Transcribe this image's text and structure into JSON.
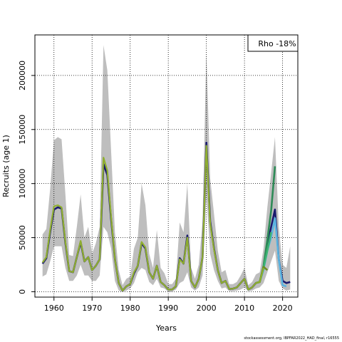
{
  "footer_text": "stockassessment.org, IBPFAR2022_HAD_final, r16555",
  "chart_data": {
    "type": "line",
    "xlabel": "Years",
    "ylabel": "Recruits (age 1)",
    "xlim": [
      1955,
      2024
    ],
    "ylim": [
      -5000,
      237500
    ],
    "x_ticks": [
      1960,
      1970,
      1980,
      1990,
      2000,
      2010,
      2020
    ],
    "y_ticks": [
      0,
      50000,
      100000,
      150000,
      200000
    ],
    "y_tick_labels": [
      "0",
      "50000",
      "100000",
      "150000",
      "200000"
    ],
    "grid": "dotted",
    "annotation": "Rho -18%",
    "annotation_position": "top-right",
    "confidence_band": {
      "color": "#bebebe",
      "x": [
        1957,
        1958,
        1959,
        1960,
        1961,
        1962,
        1963,
        1964,
        1965,
        1966,
        1967,
        1968,
        1969,
        1970,
        1971,
        1972,
        1973,
        1974,
        1975,
        1976,
        1977,
        1978,
        1979,
        1980,
        1981,
        1982,
        1983,
        1984,
        1985,
        1986,
        1987,
        1988,
        1989,
        1990,
        1991,
        1992,
        1993,
        1994,
        1995,
        1996,
        1997,
        1998,
        1999,
        2000,
        2001,
        2002,
        2003,
        2004,
        2005,
        2006,
        2007,
        2008,
        2009,
        2010,
        2011,
        2012,
        2013,
        2014,
        2015,
        2016,
        2017,
        2018,
        2019,
        2020,
        2021,
        2022
      ],
      "upper": [
        53000,
        58000,
        95000,
        140000,
        143000,
        141000,
        90000,
        34000,
        33000,
        60000,
        90000,
        50000,
        60000,
        35000,
        45000,
        60000,
        228000,
        205000,
        130000,
        55000,
        20000,
        6000,
        12000,
        14000,
        40000,
        50000,
        100000,
        80000,
        35000,
        22000,
        57000,
        22000,
        17000,
        7000,
        7000,
        12000,
        64000,
        55000,
        100000,
        22000,
        12000,
        25000,
        65000,
        222000,
        105000,
        72000,
        38000,
        18000,
        20000,
        7000,
        7000,
        9000,
        15000,
        22000,
        6000,
        9000,
        16000,
        18000,
        40000,
        78000,
        110000,
        143000,
        60000,
        25000,
        22000,
        42000
      ],
      "lower": [
        14000,
        16000,
        28000,
        42000,
        42000,
        42000,
        22000,
        10000,
        10000,
        15000,
        25000,
        15000,
        15000,
        10000,
        10000,
        15000,
        60000,
        55000,
        40000,
        10000,
        1000,
        0,
        1000,
        3000,
        8000,
        18000,
        22000,
        20000,
        9000,
        6000,
        12000,
        4000,
        3000,
        0,
        0,
        2000,
        8000,
        10000,
        18000,
        4000,
        1000,
        4000,
        15000,
        90000,
        35000,
        20000,
        10000,
        3000,
        4000,
        500,
        500,
        1000,
        2000,
        4000,
        500,
        1000,
        3000,
        4000,
        8000,
        18000,
        28000,
        38000,
        10000,
        3000,
        1000,
        2000
      ]
    },
    "series": [
      {
        "color": "#1a1a6e",
        "x": [
          1957,
          1958,
          1959,
          1960,
          1961,
          1962,
          1963,
          1964,
          1965,
          1966,
          1967,
          1968,
          1969,
          1970,
          1971,
          1972,
          1973,
          1974,
          1975,
          1976,
          1977,
          1978,
          1979,
          1980,
          1981,
          1982,
          1983,
          1984,
          1985,
          1986,
          1987,
          1988,
          1989,
          1990,
          1991,
          1992,
          1993,
          1994,
          1995,
          1996,
          1997,
          1998,
          1999,
          2000,
          2001,
          2002,
          2003,
          2004,
          2005,
          2006,
          2007,
          2008,
          2009,
          2010,
          2011,
          2012,
          2013,
          2014,
          2015,
          2016,
          2017,
          2018,
          2019,
          2020,
          2021,
          2022
        ],
        "values": [
          26000,
          31000,
          55000,
          76000,
          78000,
          77000,
          45000,
          19000,
          18000,
          32000,
          46000,
          28000,
          32000,
          20000,
          24000,
          30000,
          118000,
          108000,
          67000,
          30000,
          8000,
          1000,
          5000,
          7000,
          17000,
          24000,
          45000,
          40000,
          18000,
          12000,
          24000,
          9000,
          6000,
          2000,
          2000,
          5000,
          31000,
          26000,
          52000,
          10000,
          4000,
          12000,
          32000,
          138000,
          65000,
          40000,
          20000,
          8000,
          10000,
          2500,
          2800,
          4000,
          8000,
          12000,
          2000,
          4000,
          8000,
          9000,
          22000,
          43000,
          60000,
          76000,
          30000,
          10000,
          8000,
          9000
        ]
      },
      {
        "color": "#5ab4e0",
        "x": [
          2013,
          2014,
          2015,
          2016,
          2017,
          2018,
          2019,
          2020,
          2021
        ],
        "values": [
          8000,
          9000,
          20000,
          38000,
          50000,
          68000,
          30000,
          6000,
          5000
        ]
      },
      {
        "color": "#2e8b57",
        "x": [
          2013,
          2014,
          2015,
          2016,
          2017,
          2018
        ],
        "values": [
          8000,
          9000,
          24000,
          48000,
          75000,
          116000
        ]
      },
      {
        "color": "#3cb371",
        "x": [
          2013,
          2014,
          2015,
          2016,
          2017
        ],
        "values": [
          8000,
          9000,
          22000,
          38000,
          55000
        ]
      },
      {
        "color": "#6b8e23",
        "x": [
          2013,
          2014,
          2015,
          2016
        ],
        "values": [
          8000,
          9000,
          23000,
          20000
        ]
      },
      {
        "color": "#8fae2f",
        "x": [
          1957,
          1958,
          1959,
          1960,
          1961,
          1962,
          1963,
          1964,
          1965,
          1966,
          1967,
          1968,
          1969,
          1970,
          1971,
          1972,
          1973,
          1974,
          1975,
          1976,
          1977,
          1978,
          1979,
          1980,
          1981,
          1982,
          1983,
          1984,
          1985,
          1986,
          1987,
          1988,
          1989,
          1990,
          1991,
          1992,
          1993,
          1994,
          1995,
          1996,
          1997,
          1998,
          1999,
          2000,
          2001,
          2002,
          2003,
          2004,
          2005,
          2006,
          2007,
          2008,
          2009,
          2010,
          2011,
          2012,
          2013,
          2014,
          2015
        ],
        "values": [
          27000,
          32000,
          57000,
          79000,
          80000,
          78000,
          46000,
          19000,
          18000,
          32000,
          47000,
          28000,
          32000,
          20000,
          24000,
          30000,
          124000,
          112000,
          69000,
          30000,
          8000,
          1000,
          5000,
          7000,
          18000,
          24000,
          46000,
          41000,
          18000,
          12000,
          24000,
          9000,
          6000,
          2000,
          2000,
          5000,
          30000,
          26000,
          50000,
          10000,
          4000,
          12000,
          32000,
          135000,
          63000,
          39000,
          20000,
          8000,
          10000,
          2500,
          2800,
          4000,
          8000,
          12000,
          2000,
          4000,
          8000,
          9000,
          22000
        ]
      }
    ]
  }
}
